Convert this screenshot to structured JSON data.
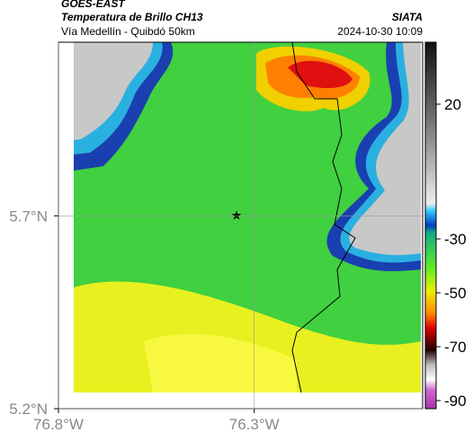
{
  "header": {
    "satellite": "GOES-EAST",
    "product": "Temperatura de Brillo CH13",
    "source": "SIATA",
    "route": "Vía Medellín - Quibdó 50km",
    "timestamp": "2024-10-30 10:09"
  },
  "map": {
    "xlim": [
      -76.8,
      -75.87
    ],
    "ylim": [
      5.2,
      6.15
    ],
    "xticks": [
      {
        "value": -76.8,
        "label": "76.8°W"
      },
      {
        "value": -76.3,
        "label": "76.3°W"
      }
    ],
    "yticks": [
      {
        "value": 5.7,
        "label": "5.7°N"
      },
      {
        "value": 5.2,
        "label": "5.2°N"
      }
    ],
    "grid": true
  },
  "colorbar": {
    "lim": [
      43,
      -93
    ],
    "ticks": [
      20,
      -30,
      -50,
      -70,
      -90
    ]
  }
}
